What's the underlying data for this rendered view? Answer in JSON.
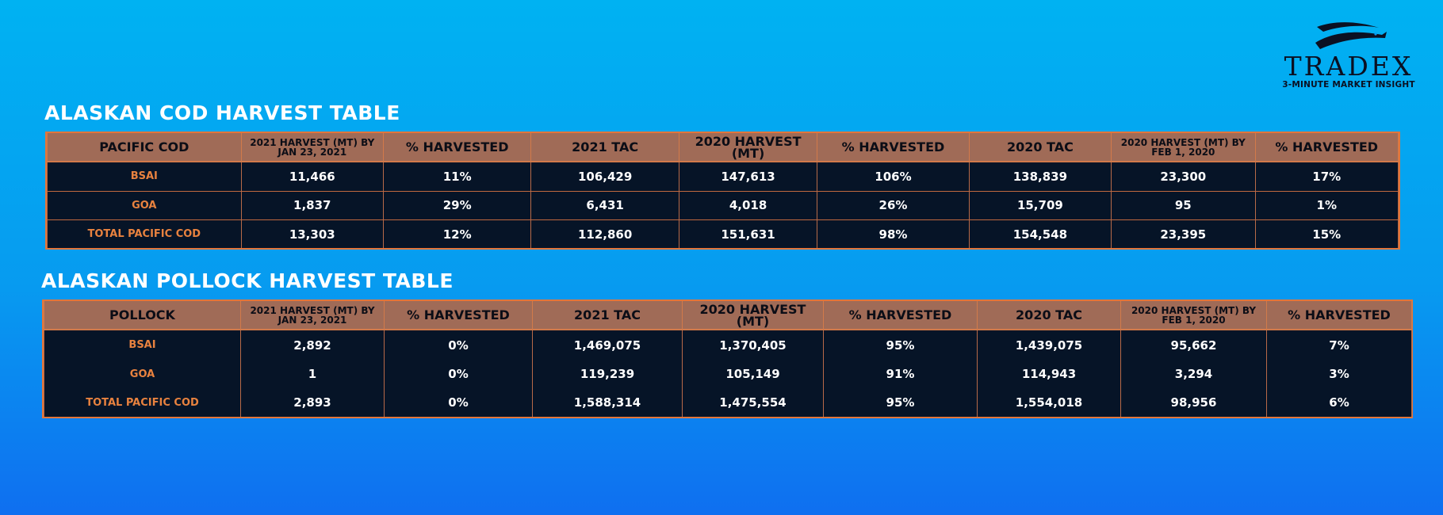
{
  "logo": {
    "name": "TRADEX",
    "tagline": "3-MINUTE MARKET INSIGHT"
  },
  "cod_table": {
    "title": "ALASKAN COD HARVEST TABLE",
    "headers": [
      "PACIFIC COD",
      "2021 HARVEST (MT) BY JAN 23, 2021",
      "% HARVESTED",
      "2021 TAC",
      "2020 HARVEST (MT)",
      "% HARVESTED",
      "2020 TAC",
      "2020 HARVEST (MT) BY FEB 1, 2020",
      "% HARVESTED"
    ],
    "rows": [
      [
        "BSAI",
        "11,466",
        "11%",
        "106,429",
        "147,613",
        "106%",
        "138,839",
        "23,300",
        "17%"
      ],
      [
        "GOA",
        "1,837",
        "29%",
        "6,431",
        "4,018",
        "26%",
        "15,709",
        "95",
        "1%"
      ],
      [
        "TOTAL PACIFIC COD",
        "13,303",
        "12%",
        "112,860",
        "151,631",
        "98%",
        "154,548",
        "23,395",
        "15%"
      ]
    ]
  },
  "pollock_table": {
    "title": "ALASKAN POLLOCK HARVEST TABLE",
    "headers": [
      "POLLOCK",
      "2021 HARVEST (MT) BY JAN 23, 2021",
      "% HARVESTED",
      "2021 TAC",
      "2020 HARVEST (MT)",
      "% HARVESTED",
      "2020 TAC",
      "2020 HARVEST (MT) BY FEB 1, 2020",
      "% HARVESTED"
    ],
    "rows": [
      [
        "BSAI",
        "2,892",
        "0%",
        "1,469,075",
        "1,370,405",
        "95%",
        "1,439,075",
        "95,662",
        "7%"
      ],
      [
        "GOA",
        "1",
        "0%",
        "119,239",
        "105,149",
        "91%",
        "114,943",
        "3,294",
        "3%"
      ],
      [
        "TOTAL PACIFIC COD",
        "2,893",
        "0%",
        "1,588,314",
        "1,475,554",
        "95%",
        "1,554,018",
        "98,956",
        "6%"
      ]
    ]
  }
}
